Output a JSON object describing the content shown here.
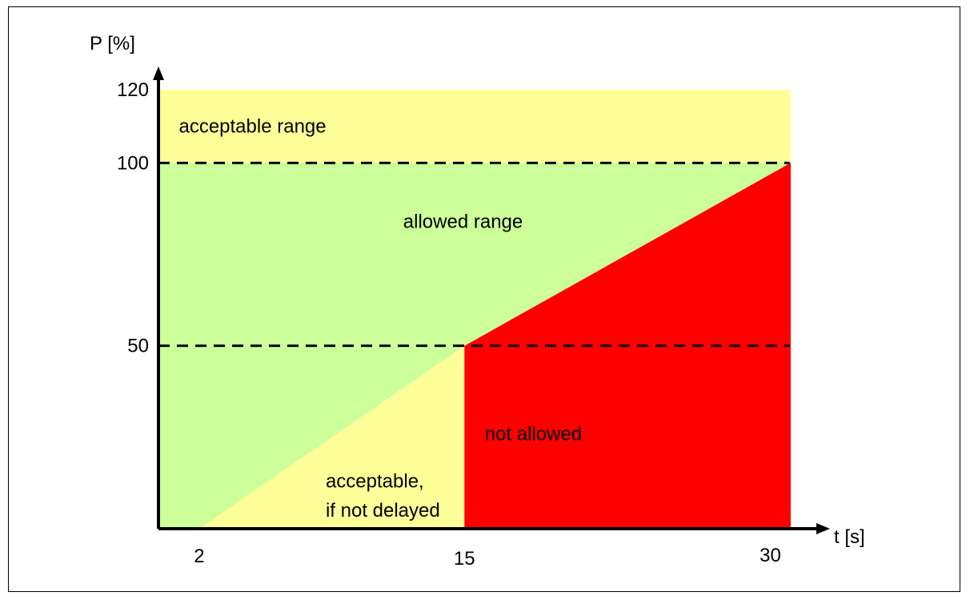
{
  "chart_data": {
    "type": "area",
    "title": "",
    "xlabel": "t [s]",
    "ylabel": "P [%]",
    "xlim": [
      0,
      31
    ],
    "ylim": [
      0,
      120
    ],
    "x_ticks": [
      {
        "value": 2,
        "label": "2"
      },
      {
        "value": 15,
        "label": "15"
      },
      {
        "value": 30,
        "label": "30"
      }
    ],
    "y_ticks": [
      {
        "value": 50,
        "label": "50"
      },
      {
        "value": 100,
        "label": "100"
      },
      {
        "value": 120,
        "label": "120"
      }
    ],
    "reference_lines": [
      {
        "axis": "y",
        "value": 100,
        "style": "dashed"
      },
      {
        "axis": "y",
        "value": 50,
        "style": "dashed"
      }
    ],
    "regions": [
      {
        "label": "acceptable range",
        "color": "#ffff99",
        "points": [
          [
            0,
            100
          ],
          [
            31,
            100
          ],
          [
            31,
            120
          ],
          [
            0,
            120
          ]
        ]
      },
      {
        "label": "allowed range",
        "color": "#ccff99",
        "points": [
          [
            0,
            0
          ],
          [
            2,
            0
          ],
          [
            15,
            50
          ],
          [
            31,
            100
          ],
          [
            0,
            100
          ]
        ]
      },
      {
        "label": "acceptable,\nif not delayed",
        "color": "#ffff99",
        "points": [
          [
            2,
            0
          ],
          [
            15,
            0
          ],
          [
            15,
            50
          ]
        ]
      },
      {
        "label": "not allowed",
        "color": "#ff0000",
        "points": [
          [
            15,
            0
          ],
          [
            31,
            0
          ],
          [
            31,
            100
          ],
          [
            15,
            50
          ]
        ]
      }
    ],
    "region_labels": [
      {
        "text": "acceptable range",
        "at": [
          1,
          110
        ]
      },
      {
        "text": "allowed range",
        "at": [
          12,
          84
        ]
      },
      {
        "text": "not allowed",
        "at": [
          16,
          26
        ]
      },
      {
        "text": "acceptable,",
        "at": [
          8.2,
          13
        ]
      },
      {
        "text": "if not delayed",
        "at": [
          8.2,
          5
        ]
      }
    ]
  }
}
